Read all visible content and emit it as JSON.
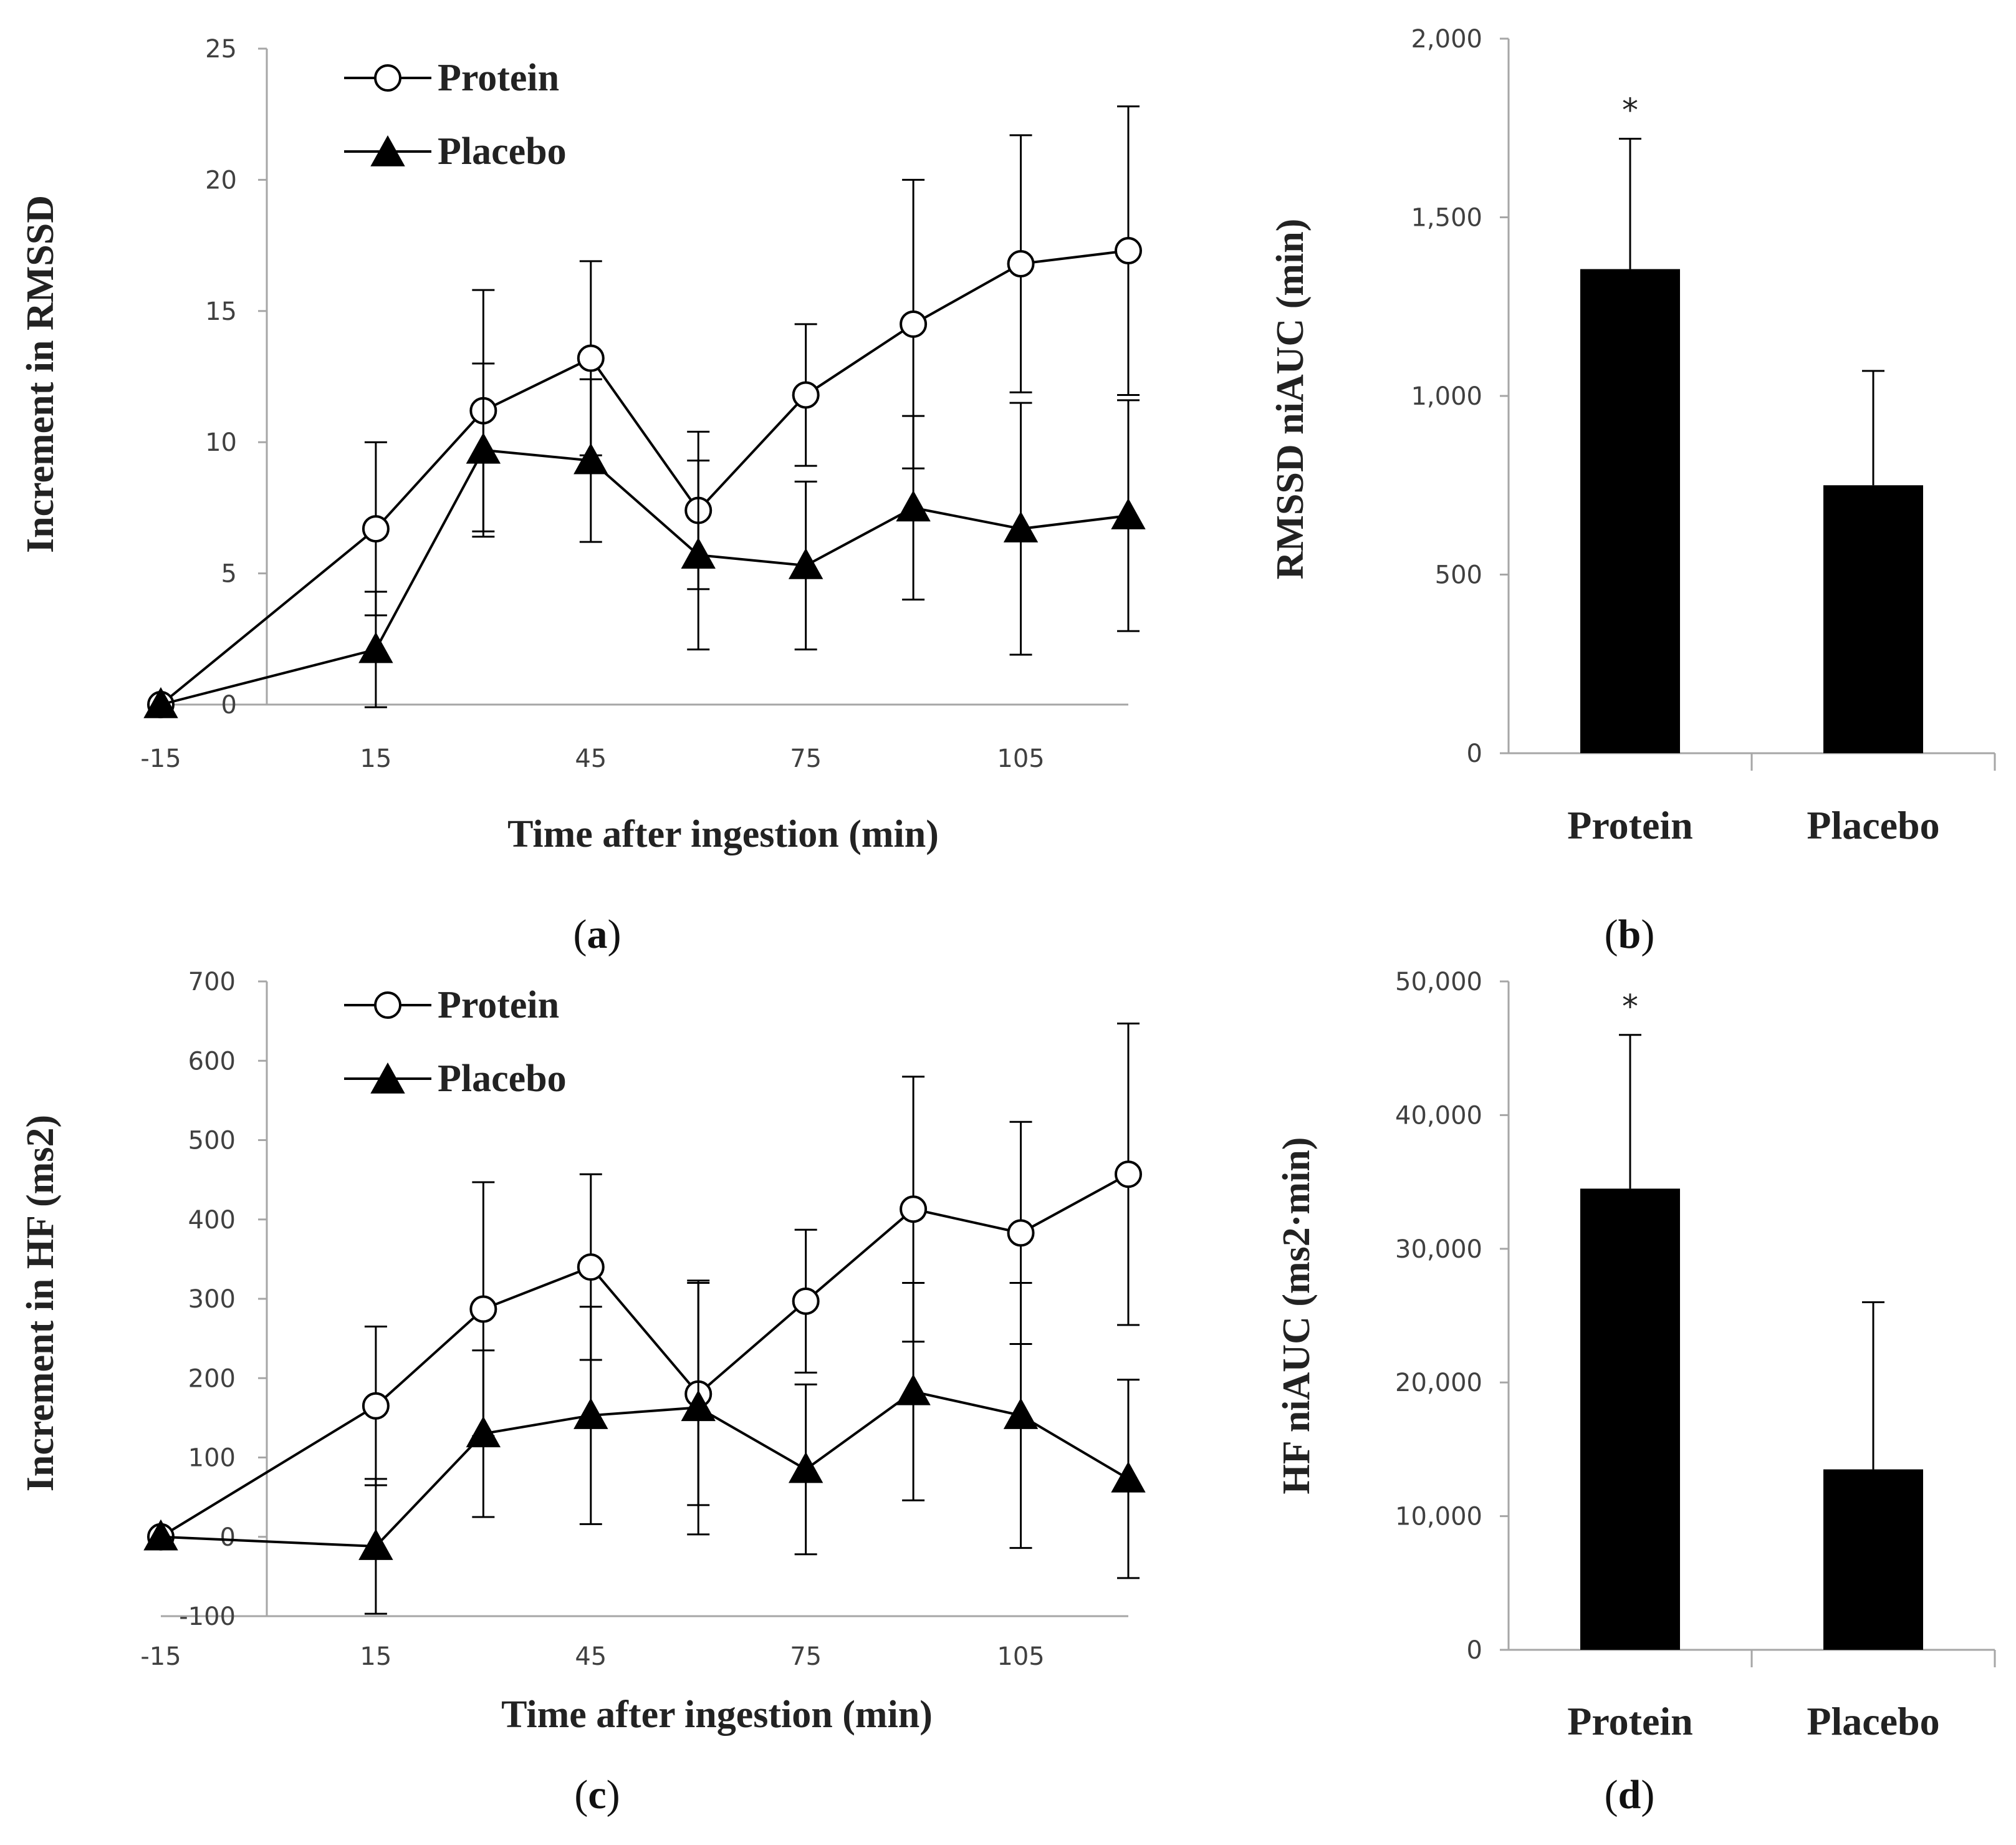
{
  "chart_data": [
    {
      "id": "a",
      "type": "line",
      "panel_label": "a",
      "xlabel": "Time after ingestion (min)",
      "ylabel": "Increment in RMSSD",
      "x": [
        -15,
        15,
        30,
        45,
        60,
        75,
        90,
        105,
        120
      ],
      "x_ticks": [
        "-15",
        "15",
        "45",
        "75",
        "105"
      ],
      "x_tick_values": [
        -15,
        15,
        45,
        75,
        105
      ],
      "ylim": [
        0,
        25
      ],
      "y_ticks": [
        "0",
        "5",
        "10",
        "15",
        "20",
        "25"
      ],
      "y_tick_values": [
        0,
        5,
        10,
        15,
        20,
        25
      ],
      "series": [
        {
          "name": "Protein",
          "marker": "open-circle",
          "values": [
            0,
            6.7,
            11.2,
            13.2,
            7.4,
            11.8,
            14.5,
            16.8,
            17.3
          ],
          "errors": [
            0,
            3.3,
            4.6,
            3.7,
            3.0,
            2.7,
            5.5,
            4.9,
            5.5
          ]
        },
        {
          "name": "Placebo",
          "marker": "filled-triangle",
          "values": [
            0,
            2.1,
            9.7,
            9.3,
            5.7,
            5.3,
            7.5,
            6.7,
            7.2
          ],
          "errors": [
            0,
            2.2,
            3.3,
            3.1,
            3.6,
            3.2,
            3.5,
            4.8,
            4.4
          ]
        }
      ]
    },
    {
      "id": "b",
      "type": "bar",
      "panel_label": "b",
      "ylabel": "RMSSD niAUC (min)",
      "categories": [
        "Protein",
        "Placebo"
      ],
      "values": [
        1355,
        750
      ],
      "errors": [
        365,
        320
      ],
      "annotations": [
        "*",
        ""
      ],
      "ylim": [
        0,
        2000
      ],
      "y_ticks": [
        "0",
        "500",
        "1,000",
        "1,500",
        "2,000"
      ],
      "y_tick_values": [
        0,
        500,
        1000,
        1500,
        2000
      ]
    },
    {
      "id": "c",
      "type": "line",
      "panel_label": "c",
      "xlabel": "Time after ingestion (min)",
      "ylabel": "Increment in HF (ms2)",
      "x": [
        -15,
        15,
        30,
        45,
        60,
        75,
        90,
        105,
        120
      ],
      "x_ticks": [
        "-15",
        "15",
        "45",
        "75",
        "105"
      ],
      "x_tick_values": [
        -15,
        15,
        45,
        75,
        105
      ],
      "ylim": [
        -100,
        700
      ],
      "y_ticks": [
        "-100",
        "0",
        "100",
        "200",
        "300",
        "400",
        "500",
        "600",
        "700"
      ],
      "y_tick_values": [
        -100,
        0,
        100,
        200,
        300,
        400,
        500,
        600,
        700
      ],
      "series": [
        {
          "name": "Protein",
          "marker": "open-circle",
          "values": [
            0,
            165,
            287,
            340,
            180,
            297,
            413,
            383,
            457
          ],
          "errors": [
            0,
            100,
            160,
            117,
            140,
            90,
            167,
            140,
            190
          ]
        },
        {
          "name": "Placebo",
          "marker": "filled-triangle",
          "values": [
            0,
            -12,
            130,
            153,
            163,
            85,
            183,
            153,
            73
          ],
          "errors": [
            0,
            85,
            105,
            137,
            160,
            107,
            137,
            167,
            125
          ]
        }
      ]
    },
    {
      "id": "d",
      "type": "bar",
      "panel_label": "d",
      "ylabel": "HF niAUC (ms2·min)",
      "categories": [
        "Protein",
        "Placebo"
      ],
      "values": [
        34500,
        13500
      ],
      "errors": [
        11500,
        12500
      ],
      "annotations": [
        "*",
        ""
      ],
      "ylim": [
        0,
        50000
      ],
      "y_ticks": [
        "0",
        "10,000",
        "20,000",
        "30,000",
        "40,000",
        "50,000"
      ],
      "y_tick_values": [
        0,
        10000,
        20000,
        30000,
        40000,
        50000
      ]
    }
  ]
}
